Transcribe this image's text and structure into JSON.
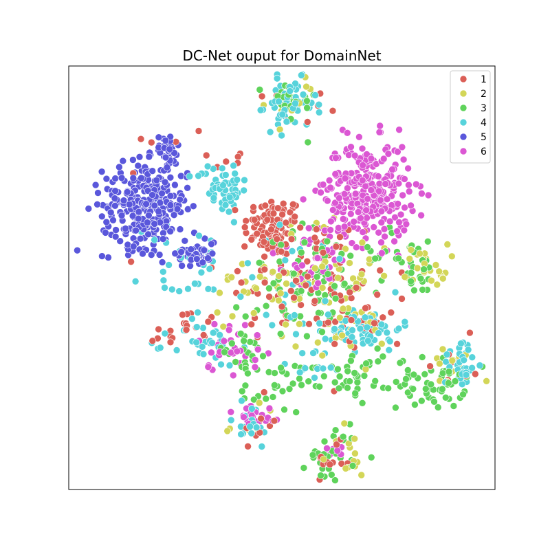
{
  "chart_data": {
    "type": "scatter",
    "title": "DC-Net ouput for DomainNet",
    "xlabel": "",
    "ylabel": "",
    "axis_ticks": "none",
    "xlim": [
      0,
      100
    ],
    "ylim": [
      0,
      100
    ],
    "grid": false,
    "legend_placement": "top-right",
    "point_size": 5,
    "point_edge_color": "#ffffff",
    "clusters_note_unused": null,
    "series": [
      {
        "name": "1",
        "color": "#db5f57",
        "clusters": [
          {
            "cx": 48,
            "cy": 62,
            "sx": 3.5,
            "sy": 3.5,
            "n": 90
          },
          {
            "cx": 55,
            "cy": 50,
            "sx": 10,
            "sy": 8,
            "n": 80
          },
          {
            "cx": 70,
            "cy": 40,
            "sx": 5,
            "sy": 4,
            "n": 25
          },
          {
            "cx": 27,
            "cy": 37,
            "sx": 4,
            "sy": 3,
            "n": 20
          },
          {
            "cx": 62,
            "cy": 7,
            "sx": 2,
            "sy": 2,
            "n": 12
          },
          {
            "cx": 44,
            "cy": 16,
            "sx": 3,
            "sy": 3,
            "n": 10
          },
          {
            "cx": 30,
            "cy": 78,
            "sx": 6,
            "sy": 4,
            "n": 12
          },
          {
            "cx": 50,
            "cy": 90,
            "sx": 5,
            "sy": 3,
            "n": 8
          },
          {
            "cx": 90,
            "cy": 30,
            "sx": 3,
            "sy": 3,
            "n": 8
          }
        ]
      },
      {
        "name": "2",
        "color": "#d3d658",
        "clusters": [
          {
            "cx": 60,
            "cy": 50,
            "sx": 9,
            "sy": 7,
            "n": 70
          },
          {
            "cx": 84,
            "cy": 53,
            "sx": 2.5,
            "sy": 2.5,
            "n": 25
          },
          {
            "cx": 66,
            "cy": 37,
            "sx": 4,
            "sy": 3,
            "n": 25
          },
          {
            "cx": 65,
            "cy": 8,
            "sx": 3,
            "sy": 3,
            "n": 15
          },
          {
            "cx": 90,
            "cy": 29,
            "sx": 3,
            "sy": 3,
            "n": 12
          },
          {
            "cx": 52,
            "cy": 92,
            "sx": 3,
            "sy": 3,
            "n": 12
          },
          {
            "cx": 44,
            "cy": 15,
            "sx": 3,
            "sy": 3,
            "n": 8
          },
          {
            "cx": 40,
            "cy": 46,
            "sx": 4,
            "sy": 3,
            "n": 10
          }
        ]
      },
      {
        "name": "3",
        "color": "#5fd35b",
        "clusters": [
          {
            "cx": 58,
            "cy": 48,
            "sx": 8,
            "sy": 7,
            "n": 80
          },
          {
            "cx": 85,
            "cy": 25,
            "sx": 4,
            "sy": 3,
            "n": 55
          },
          {
            "cx": 62,
            "cy": 8,
            "sx": 3,
            "sy": 3,
            "n": 30
          },
          {
            "cx": 68,
            "cy": 27,
            "sx": 4,
            "sy": 3,
            "n": 40
          },
          {
            "cx": 49,
            "cy": 24,
            "sx": 4,
            "sy": 3,
            "n": 30
          },
          {
            "cx": 52,
            "cy": 91,
            "sx": 3,
            "sy": 3,
            "n": 25
          },
          {
            "cx": 40,
            "cy": 32,
            "sx": 4,
            "sy": 3,
            "n": 20
          },
          {
            "cx": 82,
            "cy": 52,
            "sx": 3,
            "sy": 3,
            "n": 20
          },
          {
            "cx": 75,
            "cy": 56,
            "sx": 5,
            "sy": 4,
            "n": 15
          }
        ]
      },
      {
        "name": "4",
        "color": "#57d3db",
        "clusters": [
          {
            "cx": 52,
            "cy": 91,
            "sx": 3,
            "sy": 3,
            "n": 55
          },
          {
            "cx": 36,
            "cy": 71,
            "sx": 3,
            "sy": 3,
            "n": 55
          },
          {
            "cx": 70,
            "cy": 38,
            "sx": 4,
            "sy": 2.5,
            "n": 60
          },
          {
            "cx": 92,
            "cy": 30,
            "sx": 2,
            "sy": 3,
            "n": 35
          },
          {
            "cx": 32,
            "cy": 34,
            "sx": 4,
            "sy": 2.5,
            "n": 30
          },
          {
            "cx": 27,
            "cy": 53,
            "sx": 5,
            "sy": 7,
            "n": 30
          },
          {
            "cx": 42,
            "cy": 15,
            "sx": 3,
            "sy": 3,
            "n": 20
          },
          {
            "cx": 55,
            "cy": 48,
            "sx": 9,
            "sy": 7,
            "n": 30
          },
          {
            "cx": 58,
            "cy": 30,
            "sx": 3,
            "sy": 2,
            "n": 15
          }
        ]
      },
      {
        "name": "5",
        "color": "#5a57db",
        "clusters": [
          {
            "cx": 18,
            "cy": 67,
            "sx": 5,
            "sy": 5,
            "n": 300
          },
          {
            "cx": 23,
            "cy": 80,
            "sx": 1.5,
            "sy": 2,
            "n": 35
          },
          {
            "cx": 30,
            "cy": 56,
            "sx": 2.5,
            "sy": 1.8,
            "n": 45
          }
        ]
      },
      {
        "name": "6",
        "color": "#db57d3",
        "clusters": [
          {
            "cx": 70,
            "cy": 70,
            "sx": 5,
            "sy": 6,
            "n": 300
          },
          {
            "cx": 56,
            "cy": 53,
            "sx": 4,
            "sy": 3,
            "n": 30
          },
          {
            "cx": 38,
            "cy": 34,
            "sx": 4,
            "sy": 3,
            "n": 30
          },
          {
            "cx": 44,
            "cy": 17,
            "sx": 3,
            "sy": 2,
            "n": 20
          },
          {
            "cx": 63,
            "cy": 9,
            "sx": 2,
            "sy": 2,
            "n": 6
          },
          {
            "cx": 60,
            "cy": 60,
            "sx": 3,
            "sy": 3,
            "n": 10
          }
        ]
      }
    ]
  }
}
